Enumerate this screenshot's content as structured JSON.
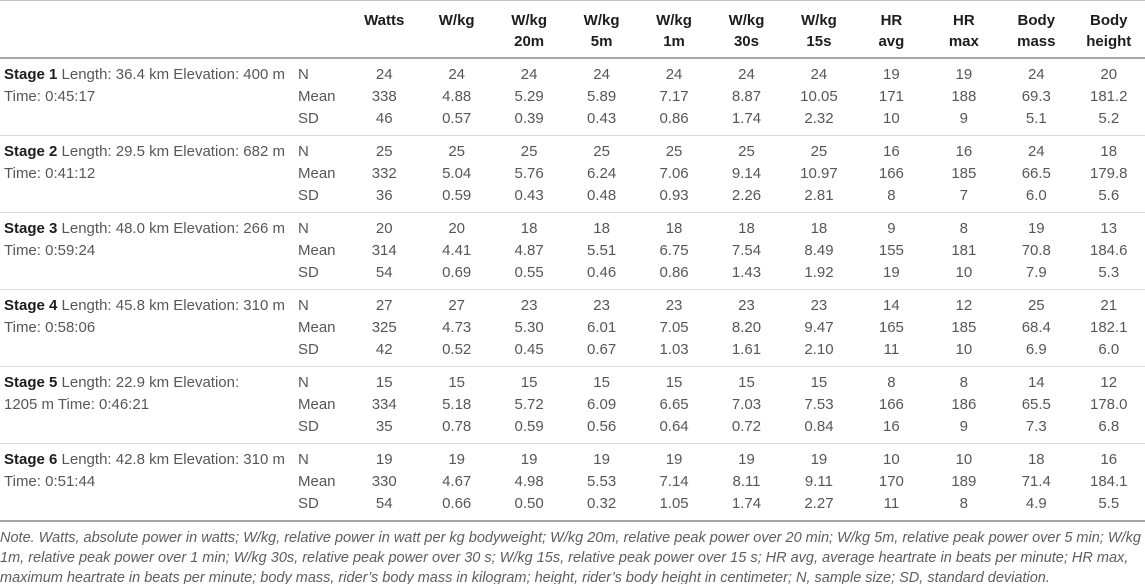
{
  "table": {
    "row_labels": [
      "N",
      "Mean",
      "SD"
    ],
    "columns": [
      {
        "line1": "Watts",
        "line2": ""
      },
      {
        "line1": "W/kg",
        "line2": ""
      },
      {
        "line1": "W/kg",
        "line2": "20m"
      },
      {
        "line1": "W/kg",
        "line2": "5m"
      },
      {
        "line1": "W/kg",
        "line2": "1m"
      },
      {
        "line1": "W/kg",
        "line2": "30s"
      },
      {
        "line1": "W/kg",
        "line2": "15s"
      },
      {
        "line1": "HR",
        "line2": "avg"
      },
      {
        "line1": "HR",
        "line2": "max"
      },
      {
        "line1": "Body",
        "line2": "mass"
      },
      {
        "line1": "Body",
        "line2": "height"
      }
    ],
    "stages": [
      {
        "title": "Stage 1",
        "desc": "Length: 36.4 km Elevation: 400 m\nTime: 0:45:17",
        "rows": [
          [
            "24",
            "24",
            "24",
            "24",
            "24",
            "24",
            "24",
            "19",
            "19",
            "24",
            "20"
          ],
          [
            "338",
            "4.88",
            "5.29",
            "5.89",
            "7.17",
            "8.87",
            "10.05",
            "171",
            "188",
            "69.3",
            "181.2"
          ],
          [
            "46",
            "0.57",
            "0.39",
            "0.43",
            "0.86",
            "1.74",
            "2.32",
            "10",
            "9",
            "5.1",
            "5.2"
          ]
        ]
      },
      {
        "title": "Stage 2",
        "desc": "Length: 29.5 km Elevation: 682 m\nTime: 0:41:12",
        "rows": [
          [
            "25",
            "25",
            "25",
            "25",
            "25",
            "25",
            "25",
            "16",
            "16",
            "24",
            "18"
          ],
          [
            "332",
            "5.04",
            "5.76",
            "6.24",
            "7.06",
            "9.14",
            "10.97",
            "166",
            "185",
            "66.5",
            "179.8"
          ],
          [
            "36",
            "0.59",
            "0.43",
            "0.48",
            "0.93",
            "2.26",
            "2.81",
            "8",
            "7",
            "6.0",
            "5.6"
          ]
        ]
      },
      {
        "title": "Stage 3",
        "desc": "Length: 48.0 km Elevation: 266 m\nTime: 0:59:24",
        "rows": [
          [
            "20",
            "20",
            "18",
            "18",
            "18",
            "18",
            "18",
            "9",
            "8",
            "19",
            "13"
          ],
          [
            "314",
            "4.41",
            "4.87",
            "5.51",
            "6.75",
            "7.54",
            "8.49",
            "155",
            "181",
            "70.8",
            "184.6"
          ],
          [
            "54",
            "0.69",
            "0.55",
            "0.46",
            "0.86",
            "1.43",
            "1.92",
            "19",
            "10",
            "7.9",
            "5.3"
          ]
        ]
      },
      {
        "title": "Stage 4",
        "desc": "Length: 45.8 km Elevation: 310 m\nTime: 0:58:06",
        "rows": [
          [
            "27",
            "27",
            "23",
            "23",
            "23",
            "23",
            "23",
            "14",
            "12",
            "25",
            "21"
          ],
          [
            "325",
            "4.73",
            "5.30",
            "6.01",
            "7.05",
            "8.20",
            "9.47",
            "165",
            "185",
            "68.4",
            "182.1"
          ],
          [
            "42",
            "0.52",
            "0.45",
            "0.67",
            "1.03",
            "1.61",
            "2.10",
            "11",
            "10",
            "6.9",
            "6.0"
          ]
        ]
      },
      {
        "title": "Stage 5",
        "desc": "Length: 22.9 km Elevation:\n1205 m Time: 0:46:21",
        "rows": [
          [
            "15",
            "15",
            "15",
            "15",
            "15",
            "15",
            "15",
            "8",
            "8",
            "14",
            "12"
          ],
          [
            "334",
            "5.18",
            "5.72",
            "6.09",
            "6.65",
            "7.03",
            "7.53",
            "166",
            "186",
            "65.5",
            "178.0"
          ],
          [
            "35",
            "0.78",
            "0.59",
            "0.56",
            "0.64",
            "0.72",
            "0.84",
            "16",
            "9",
            "7.3",
            "6.8"
          ]
        ]
      },
      {
        "title": "Stage 6",
        "desc": "Length: 42.8 km Elevation: 310 m\nTime: 0:51:44",
        "rows": [
          [
            "19",
            "19",
            "19",
            "19",
            "19",
            "19",
            "19",
            "10",
            "10",
            "18",
            "16"
          ],
          [
            "330",
            "4.67",
            "4.98",
            "5.53",
            "7.14",
            "8.11",
            "9.11",
            "170",
            "189",
            "71.4",
            "184.1"
          ],
          [
            "54",
            "0.66",
            "0.50",
            "0.32",
            "1.05",
            "1.74",
            "2.27",
            "11",
            "8",
            "4.9",
            "5.5"
          ]
        ]
      }
    ]
  },
  "note": "Note. Watts, absolute power in watts; W/kg, relative power in watt per kg bodyweight; W/kg 20m, relative peak power over 20 min; W/kg 5m, relative peak power over 5 min; W/kg 1m, relative peak power over 1 min; W/kg 30s, relative peak power over 30 s; W/kg 15s, relative peak power over 15 s; HR avg, average heartrate in beats per minute; HR max, maximum heartrate in beats per minute; body mass, rider’s body mass in kilogram; height, rider’s body height in centimeter; N, sample size; SD, standard deviation."
}
